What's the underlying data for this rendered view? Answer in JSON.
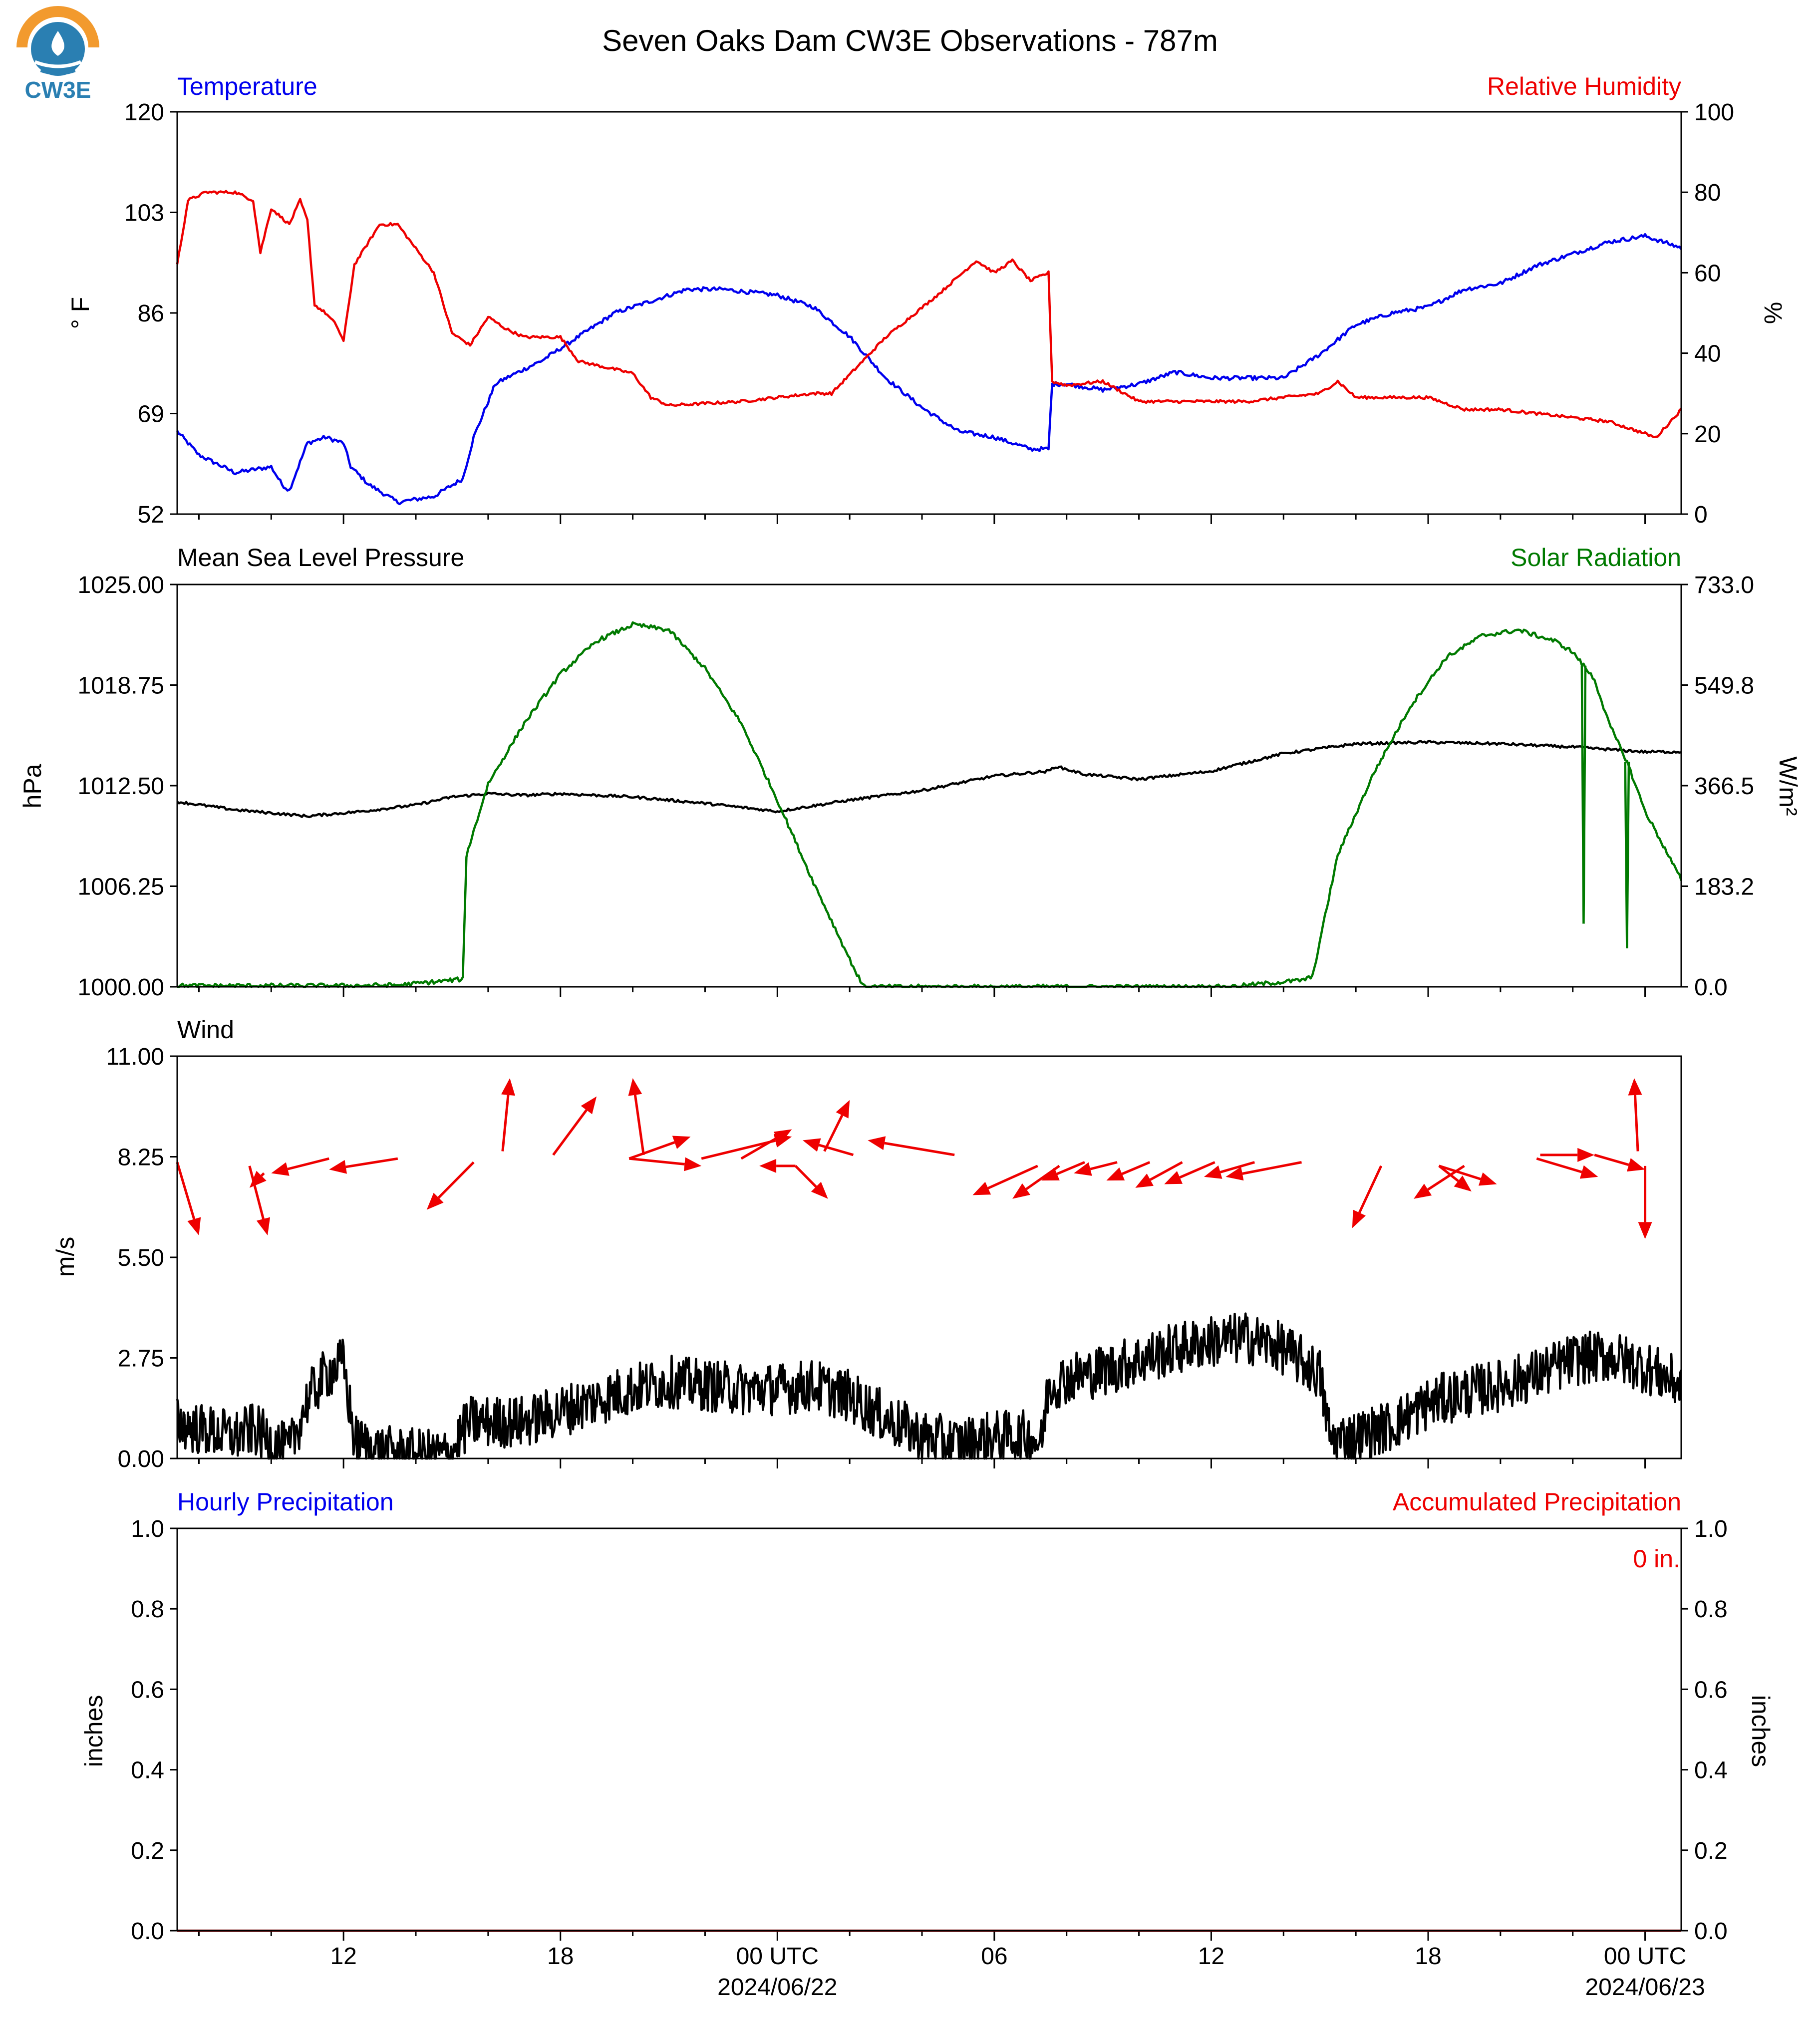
{
  "title": "Seven Oaks Dam CW3E Observations - 787m",
  "logo": {
    "text": "CW3E",
    "colors": {
      "orange": "#F29A2E",
      "blue": "#2A7FB2"
    }
  },
  "x_axis": {
    "range_hours": [
      -16.6,
      25
    ],
    "ticks": [
      {
        "hour": -12,
        "label": "12"
      },
      {
        "hour": -6,
        "label": "18"
      },
      {
        "hour": 0,
        "label": "00 UTC",
        "date": "2024/06/22"
      },
      {
        "hour": 6,
        "label": "06"
      },
      {
        "hour": 12,
        "label": "12"
      },
      {
        "hour": 18,
        "label": "18"
      },
      {
        "hour": 24,
        "label": "00 UTC",
        "date": "2024/06/23"
      }
    ]
  },
  "chart_data": [
    {
      "type": "line",
      "panel": "temperature_humidity",
      "title_left": "Temperature",
      "title_right": "Relative Humidity",
      "ylabel_left": "° F",
      "ylabel_right": "%",
      "ylim_left": [
        52,
        120
      ],
      "ylim_right": [
        0,
        100
      ],
      "yticks_left": [
        "52",
        "69",
        "86",
        "103",
        "120"
      ],
      "yticks_right": [
        "0",
        "20",
        "40",
        "60",
        "80",
        "100"
      ],
      "series": [
        {
          "name": "Temperature",
          "axis": "left",
          "color": "#0000EE",
          "x": [
            -16.6,
            -16,
            -15,
            -14,
            -13.7,
            -13.5,
            -13,
            -12.5,
            -12,
            -11.8,
            -11.3,
            -10.5,
            -9.5,
            -8.7,
            -8.4,
            -7.8,
            -7.5,
            -6.5,
            -6,
            -5.5,
            -4.5,
            -3.5,
            -2.5,
            -1.5,
            0,
            1,
            2,
            3,
            4,
            5,
            6,
            7,
            7.5,
            7.6,
            8,
            9,
            10,
            11,
            12,
            14,
            15,
            16,
            17,
            18,
            19,
            20,
            21,
            22,
            23,
            24,
            25
          ],
          "y": [
            66,
            62,
            59,
            60,
            57,
            56,
            64,
            65,
            64,
            60,
            57,
            54,
            55,
            58,
            65,
            74,
            75,
            78,
            80,
            82,
            86,
            88,
            90,
            90,
            89,
            87,
            82,
            75,
            70,
            66,
            65,
            63,
            63,
            74,
            74,
            73,
            74,
            76,
            75,
            75,
            79,
            84,
            86,
            87,
            90,
            91,
            94,
            96,
            98,
            99,
            97
          ]
        },
        {
          "name": "Relative Humidity",
          "axis": "right",
          "color": "#EE0000",
          "x": [
            -16.6,
            -16.3,
            -15.8,
            -15,
            -14.5,
            -14.3,
            -14,
            -13.5,
            -13.2,
            -13,
            -12.8,
            -12.5,
            -12.2,
            -12,
            -11.7,
            -11,
            -10.5,
            -9.5,
            -9,
            -8.5,
            -8,
            -7.5,
            -7,
            -6,
            -5.5,
            -4,
            -3.5,
            -3,
            -1,
            1,
            1.5,
            3,
            4.5,
            5.5,
            6,
            6.5,
            7,
            7.5,
            7.6,
            8,
            9,
            10,
            11,
            12,
            13,
            14,
            15,
            15.5,
            16,
            18,
            19,
            20,
            21,
            22,
            23,
            24,
            24.3,
            25
          ],
          "y": [
            62,
            78,
            80,
            80,
            78,
            65,
            76,
            72,
            78,
            73,
            52,
            50,
            47,
            43,
            62,
            72,
            72,
            60,
            45,
            42,
            49,
            46,
            44,
            44,
            38,
            35,
            29,
            27,
            28,
            30,
            30,
            44,
            55,
            63,
            60,
            63,
            58,
            60,
            33,
            32,
            33,
            28,
            28,
            28,
            28,
            29,
            30,
            33,
            29,
            29,
            26,
            26,
            25,
            24,
            23,
            20,
            19,
            26
          ]
        },
        {
          "name": "",
          "axis": "left",
          "color": "#0000EE",
          "style": "line"
        }
      ]
    },
    {
      "type": "line",
      "panel": "pressure_solar",
      "title_left": "Mean Sea Level Pressure",
      "title_right": "Solar Radiation",
      "ylabel_left": "hPa",
      "ylabel_right": "W/m²",
      "ylim_left": [
        1000,
        1025
      ],
      "ylim_right": [
        0,
        733
      ],
      "yticks_left": [
        "1000.00",
        "1006.25",
        "1012.50",
        "1018.75",
        "1025.00"
      ],
      "yticks_right": [
        "0.0",
        "183.2",
        "366.5",
        "549.8",
        "733.0"
      ],
      "series": [
        {
          "name": "Mean Sea Level Pressure",
          "axis": "left",
          "color": "#000000",
          "x": [
            -16.6,
            -15,
            -13,
            -11.5,
            -10,
            -9,
            -8,
            -7,
            -6,
            -4,
            -2,
            0,
            2,
            4,
            6,
            7.5,
            7.7,
            8.5,
            10,
            12,
            14,
            16,
            18,
            20,
            22,
            24,
            25
          ],
          "y": [
            1011.5,
            1011,
            1010.6,
            1010.9,
            1011.3,
            1011.8,
            1012,
            1011.9,
            1012,
            1011.8,
            1011.4,
            1010.9,
            1011.6,
            1012.2,
            1013.1,
            1013.4,
            1013.7,
            1013.2,
            1012.9,
            1013.4,
            1014.5,
            1015.1,
            1015.2,
            1015.1,
            1014.9,
            1014.6,
            1014.6
          ]
        },
        {
          "name": "Solar Radiation",
          "axis": "right",
          "color": "#007A00",
          "x": [
            -16.6,
            -12,
            -10.5,
            -9,
            -8.7,
            -8.6,
            -8,
            -7,
            -6,
            -5,
            -4,
            -3,
            -2,
            -1,
            0,
            1,
            2,
            2.3,
            2.4,
            6,
            8,
            10,
            12.5,
            14.5,
            14.8,
            15.5,
            16.5,
            17.5,
            18.5,
            19.5,
            20.5,
            21.5,
            22,
            22.6,
            23,
            23.5,
            24,
            25
          ],
          "y": [
            2,
            2,
            3,
            12,
            14,
            240,
            370,
            480,
            570,
            630,
            660,
            650,
            580,
            480,
            340,
            190,
            50,
            10,
            0,
            0,
            0,
            0,
            0,
            12,
            18,
            240,
            390,
            510,
            600,
            640,
            650,
            630,
            610,
            560,
            480,
            410,
            320,
            195
          ]
        }
      ]
    },
    {
      "type": "line",
      "panel": "wind",
      "title_left": "Wind",
      "ylabel_left": "m/s",
      "ylim_left": [
        0,
        11
      ],
      "yticks_left": [
        "0.00",
        "2.75",
        "5.50",
        "8.25",
        "11.00"
      ],
      "series": [
        {
          "name": "Wind",
          "axis": "left",
          "color": "#000000",
          "x": [
            -16.6,
            -16,
            -15,
            -14.5,
            -13.7,
            -13.5,
            -13,
            -12.5,
            -12.2,
            -12,
            -11.7,
            -11,
            -10,
            -9,
            -8.8,
            -8.5,
            -8,
            -7,
            -6,
            -5,
            -4,
            -3,
            -2,
            -1,
            0,
            1,
            2,
            3,
            4,
            5,
            6,
            7,
            7.3,
            7.5,
            8,
            9,
            10,
            11,
            12,
            13,
            14,
            15,
            15.3,
            16,
            17,
            18,
            19,
            20,
            21,
            22,
            23,
            24,
            25
          ],
          "y": [
            1.0,
            0.8,
            0.6,
            0.8,
            0.3,
            0.2,
            1.6,
            2.3,
            2.5,
            2.6,
            0.5,
            0.2,
            0.1,
            0.1,
            0.6,
            1.0,
            1.0,
            1.0,
            1.3,
            1.6,
            1.9,
            2.1,
            2.0,
            1.9,
            1.9,
            2.0,
            1.7,
            1.1,
            0.6,
            0.4,
            0.6,
            0.6,
            0.4,
            2.0,
            2.2,
            2.4,
            2.7,
            3.0,
            3.2,
            3.3,
            3.0,
            2.3,
            0.5,
            0.6,
            0.9,
            1.5,
            1.8,
            2.0,
            2.3,
            2.7,
            2.8,
            2.5,
            2.0
          ]
        }
      ],
      "wind_barbs": {
        "color": "#EE0000",
        "arrows": [
          {
            "x0": -16.6,
            "y0": 8.1,
            "x1": -16.0,
            "y1": 6.1
          },
          {
            "x0": -14.6,
            "y0": 8.0,
            "x1": -14.1,
            "y1": 6.1
          },
          {
            "x0": -14.2,
            "y0": 7.8,
            "x1": -14.6,
            "y1": 7.4
          },
          {
            "x0": -12.4,
            "y0": 8.2,
            "x1": -14.0,
            "y1": 7.8
          },
          {
            "x0": -10.5,
            "y0": 8.2,
            "x1": -12.4,
            "y1": 7.9
          },
          {
            "x0": -8.4,
            "y0": 8.1,
            "x1": -9.7,
            "y1": 6.8
          },
          {
            "x0": -7.6,
            "y0": 8.4,
            "x1": -7.4,
            "y1": 10.4
          },
          {
            "x0": -6.2,
            "y0": 8.3,
            "x1": -5.0,
            "y1": 9.9
          },
          {
            "x0": -3.7,
            "y0": 8.3,
            "x1": -4.0,
            "y1": 10.4
          },
          {
            "x0": -4.1,
            "y0": 8.2,
            "x1": -2.4,
            "y1": 8.8
          },
          {
            "x0": -4.1,
            "y0": 8.2,
            "x1": -2.1,
            "y1": 8.0
          },
          {
            "x0": -2.1,
            "y0": 8.2,
            "x1": 0.4,
            "y1": 8.8
          },
          {
            "x0": -1.0,
            "y0": 8.2,
            "x1": 0.4,
            "y1": 9.0
          },
          {
            "x0": 1.3,
            "y0": 8.4,
            "x1": 2.0,
            "y1": 9.8
          },
          {
            "x0": 0.5,
            "y0": 8.0,
            "x1": -0.5,
            "y1": 8.0
          },
          {
            "x0": 0.5,
            "y0": 8.0,
            "x1": 1.4,
            "y1": 7.1
          },
          {
            "x0": 2.1,
            "y0": 8.3,
            "x1": 0.7,
            "y1": 8.7
          },
          {
            "x0": 4.9,
            "y0": 8.3,
            "x1": 2.5,
            "y1": 8.7
          },
          {
            "x0": 3.5,
            "y0": 8.6,
            "x1": 3.5,
            "y1": 8.6
          },
          {
            "x0": 7.2,
            "y0": 8.0,
            "x1": 5.4,
            "y1": 7.2
          },
          {
            "x0": 7.8,
            "y0": 8.0,
            "x1": 6.5,
            "y1": 7.1
          },
          {
            "x0": 8.5,
            "y0": 8.1,
            "x1": 7.3,
            "y1": 7.6
          },
          {
            "x0": 9.4,
            "y0": 8.1,
            "x1": 8.2,
            "y1": 7.8
          },
          {
            "x0": 10.3,
            "y0": 8.1,
            "x1": 9.1,
            "y1": 7.6
          },
          {
            "x0": 11.2,
            "y0": 8.1,
            "x1": 9.9,
            "y1": 7.4
          },
          {
            "x0": 12.1,
            "y0": 8.1,
            "x1": 10.7,
            "y1": 7.5
          },
          {
            "x0": 13.2,
            "y0": 8.1,
            "x1": 11.8,
            "y1": 7.7
          },
          {
            "x0": 14.5,
            "y0": 8.1,
            "x1": 12.4,
            "y1": 7.7
          },
          {
            "x0": 16.7,
            "y0": 8.0,
            "x1": 15.9,
            "y1": 6.3
          },
          {
            "x0": 19.0,
            "y0": 8.0,
            "x1": 17.6,
            "y1": 7.1
          },
          {
            "x0": 18.3,
            "y0": 8.0,
            "x1": 19.2,
            "y1": 7.3
          },
          {
            "x0": 18.3,
            "y0": 8.0,
            "x1": 19.9,
            "y1": 7.5
          },
          {
            "x0": 21.0,
            "y0": 8.2,
            "x1": 22.7,
            "y1": 7.7
          },
          {
            "x0": 21.1,
            "y0": 8.3,
            "x1": 22.6,
            "y1": 8.3
          },
          {
            "x0": 22.6,
            "y0": 8.3,
            "x1": 24.0,
            "y1": 7.9
          },
          {
            "x0": 23.8,
            "y0": 8.4,
            "x1": 23.7,
            "y1": 10.4
          },
          {
            "x0": 24.0,
            "y0": 8.0,
            "x1": 24.0,
            "y1": 6.0
          }
        ]
      }
    },
    {
      "type": "line",
      "panel": "precipitation",
      "title_left": "Hourly Precipitation",
      "title_right": "Accumulated Precipitation",
      "ylabel_left": "inches",
      "ylabel_right": "inches",
      "ylim_left": [
        0,
        1
      ],
      "ylim_right": [
        0,
        1
      ],
      "yticks_left": [
        "0.0",
        "0.2",
        "0.4",
        "0.6",
        "0.8",
        "1.0"
      ],
      "yticks_right": [
        "0.0",
        "0.2",
        "0.4",
        "0.6",
        "0.8",
        "1.0"
      ],
      "annotation": "0 in.",
      "series": [
        {
          "name": "Accumulated Precipitation",
          "axis": "right",
          "color": "#8B0000",
          "x": [
            -16.6,
            25
          ],
          "y": [
            0,
            0
          ]
        }
      ]
    }
  ],
  "colors": {
    "blue": "#0000EE",
    "red": "#EE0000",
    "green": "#007A00",
    "black": "#000000"
  }
}
